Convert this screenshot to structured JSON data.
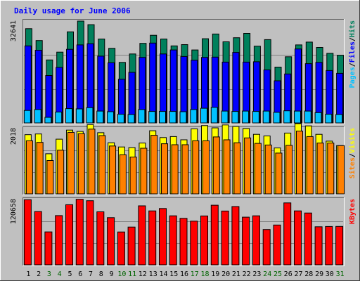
{
  "chart_data": {
    "type": "bar",
    "title": "Daily usage for June 2006",
    "days": [
      "1",
      "2",
      "3",
      "4",
      "5",
      "6",
      "7",
      "8",
      "9",
      "10",
      "11",
      "12",
      "13",
      "14",
      "15",
      "16",
      "17",
      "18",
      "19",
      "20",
      "21",
      "22",
      "23",
      "24",
      "25",
      "26",
      "27",
      "28",
      "29",
      "30",
      "31"
    ],
    "weekend_days": [
      "3",
      "4",
      "10",
      "11",
      "17",
      "18",
      "24",
      "25",
      "31"
    ],
    "colors": {
      "background": "#c0c0c0",
      "title": "#0000ff",
      "weekday_label": "#000000",
      "weekend_label": "#006400",
      "hits": "#00805c",
      "files": "#0000ff",
      "pages": "#00c0ff",
      "visits": "#ffff00",
      "sites": "#ff8000",
      "kbytes": "#ff0000"
    },
    "panels": [
      {
        "id": "hits-files-pages",
        "ymax_label": "32641",
        "ymax": 32641,
        "label_parts": [
          {
            "text": "Pages",
            "color": "#00c0ff"
          },
          {
            "text": "/",
            "color": "#000000"
          },
          {
            "text": "Files",
            "color": "#0000ff"
          },
          {
            "text": "/",
            "color": "#000000"
          },
          {
            "text": "Hits",
            "color": "#00805c"
          }
        ],
        "series": [
          {
            "name": "Hits",
            "color": "#00805c",
            "values": [
              30200,
              26400,
              20200,
              22700,
              29200,
              32640,
              31500,
              26900,
              23900,
              19400,
              22100,
              25500,
              28100,
              26900,
              24700,
              25100,
              23400,
              27000,
              28500,
              26000,
              27300,
              28700,
              24600,
              26700,
              17900,
              21200,
              25000,
              25900,
              24200,
              22300,
              21700
            ]
          },
          {
            "name": "Files",
            "color": "#0000ff",
            "values": [
              24700,
              23300,
              15200,
              17800,
              23600,
              25000,
              25400,
              21400,
              19300,
              14000,
              16200,
              21000,
              25600,
              22100,
              23400,
              21300,
              20100,
              21000,
              21100,
              19500,
              22600,
              19500,
              19600,
              17000,
              13500,
              15700,
              23700,
              19000,
              19400,
              16800,
              15900
            ]
          },
          {
            "name": "Pages",
            "color": "#00c0ff",
            "values": [
              4000,
              4300,
              1800,
              3500,
              4600,
              4500,
              4900,
              3800,
              3600,
              2800,
              2700,
              4300,
              3700,
              3700,
              3700,
              3600,
              4300,
              4700,
              5000,
              3800,
              3700,
              3800,
              3700,
              3800,
              3400,
              3900,
              3800,
              3800,
              3300,
              2800,
              2700
            ]
          }
        ]
      },
      {
        "id": "visits-sites",
        "ymax_label": "2018",
        "ymax": 2018,
        "label_parts": [
          {
            "text": "Sites",
            "color": "#ff8000"
          },
          {
            "text": "/",
            "color": "#000000"
          },
          {
            "text": "Visits",
            "color": "#ffff00"
          }
        ],
        "series": [
          {
            "name": "Visits",
            "color": "#ffff00",
            "values": [
              1830,
              1850,
              1240,
              1690,
              1970,
              1930,
              2140,
              1890,
              1580,
              1450,
              1430,
              1570,
              1950,
              1740,
              1770,
              1670,
              2010,
              2110,
              2040,
              2130,
              2080,
              2020,
              1840,
              1790,
              1420,
              1880,
              2170,
              2100,
              1840,
              1630,
              1490
            ]
          },
          {
            "name": "Sites",
            "color": "#ff8000",
            "values": [
              1640,
              1590,
              1030,
              1350,
              1900,
              1860,
              2000,
              1800,
              1480,
              1210,
              1140,
              1410,
              1810,
              1550,
              1520,
              1520,
              1640,
              1640,
              1760,
              1670,
              1580,
              1730,
              1560,
              1510,
              1260,
              1500,
              1940,
              1770,
              1570,
              1570,
              1490
            ]
          }
        ]
      },
      {
        "id": "kbytes",
        "ymax_label": "120658",
        "ymax": 120658,
        "label_parts": [
          {
            "text": "KBytes",
            "color": "#ff0000"
          }
        ],
        "series": [
          {
            "name": "KBytes",
            "color": "#ff0000",
            "values": [
              120300,
              98500,
              60900,
              90900,
              111000,
              121000,
              118400,
              98000,
              87200,
              60700,
              69800,
              109000,
              99600,
              104000,
              90600,
              85900,
              80700,
              90300,
              110100,
              99400,
              107700,
              88100,
              90500,
              65300,
              73600,
              114400,
              99600,
              95800,
              70300,
              70800,
              71000
            ]
          }
        ]
      }
    ]
  }
}
